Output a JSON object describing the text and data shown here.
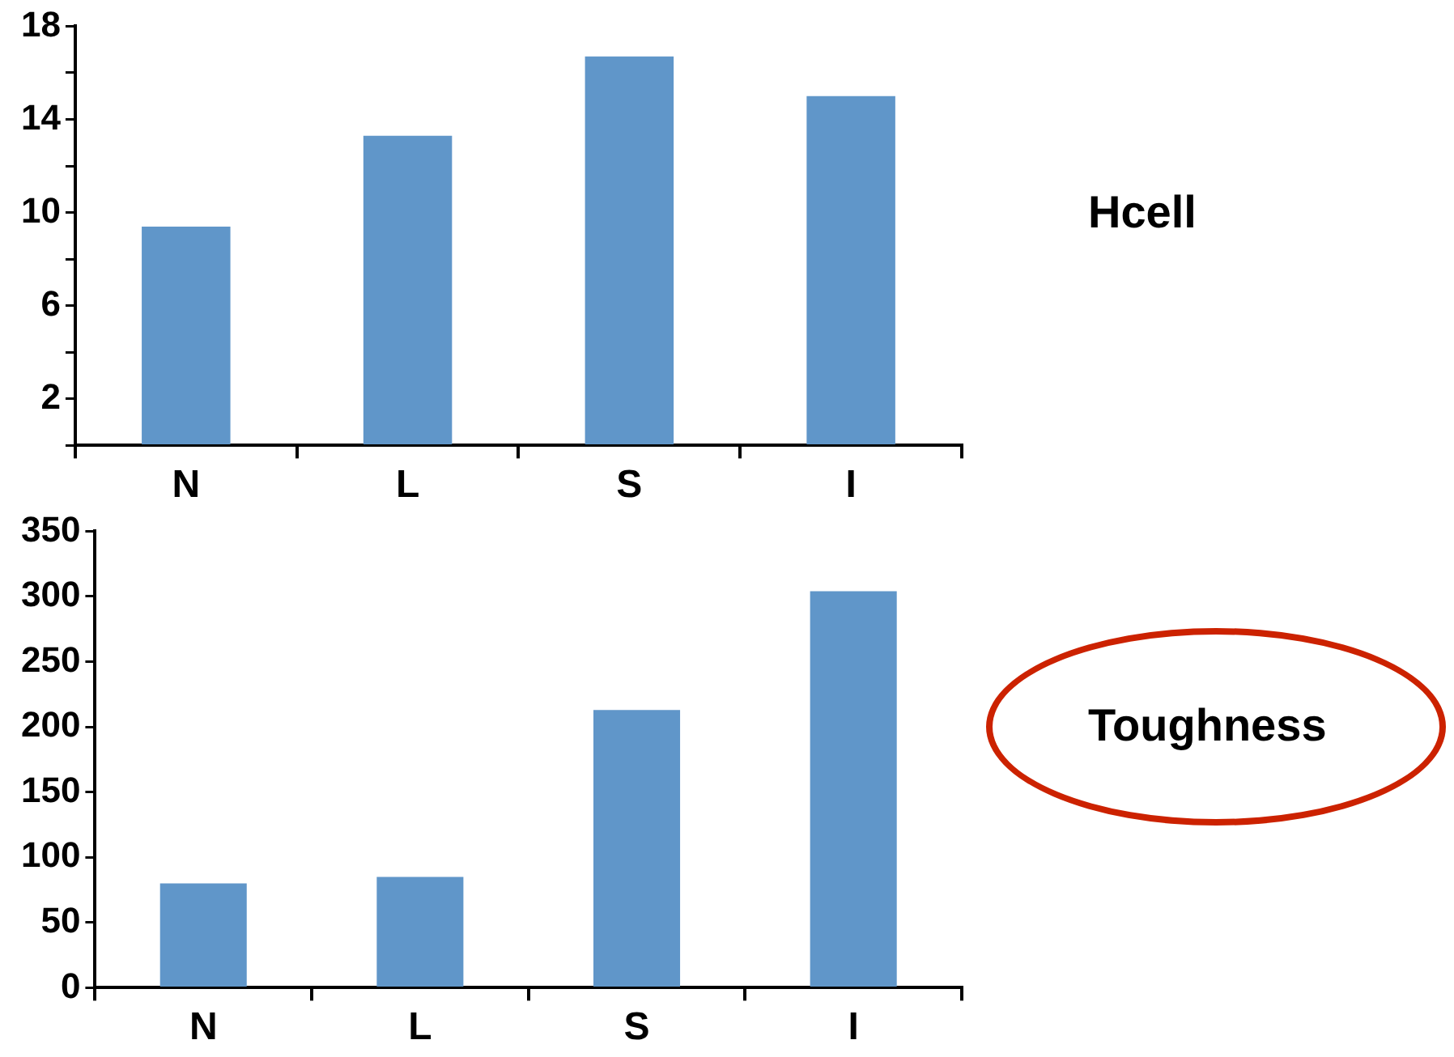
{
  "chart_data": [
    {
      "type": "bar",
      "ylabel": "Hcell",
      "categories": [
        "N",
        "L",
        "S",
        "I"
      ],
      "values": [
        9.4,
        13.3,
        16.7,
        15.0
      ],
      "color": "#6096c9",
      "ylim": [
        0,
        18
      ],
      "yticks": [
        {
          "value": 0,
          "label": null
        },
        2,
        {
          "value": 4,
          "label": null
        },
        6,
        {
          "value": 8,
          "label": null
        },
        10,
        {
          "value": 12,
          "label": null
        },
        14,
        {
          "value": 16,
          "label": null
        },
        18
      ]
    },
    {
      "type": "bar",
      "ylabel": "Toughness",
      "categories": [
        "N",
        "L",
        "S",
        "I"
      ],
      "values": [
        80,
        85,
        213,
        304
      ],
      "color": "#6096c9",
      "ylim": [
        0,
        350
      ],
      "yticks": [
        0,
        50,
        100,
        150,
        200,
        250,
        300,
        350
      ]
    }
  ]
}
